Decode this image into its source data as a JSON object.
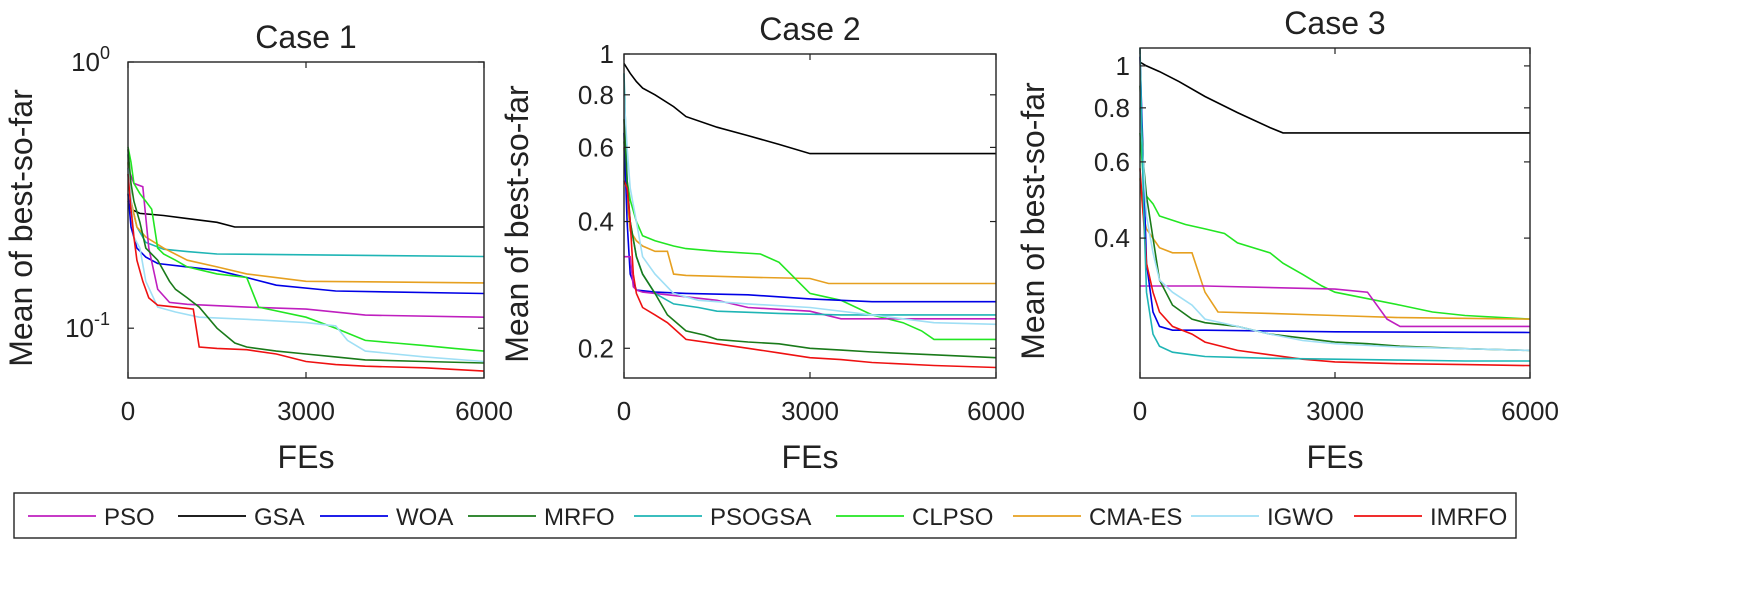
{
  "figure_legend": {
    "entries": [
      {
        "name": "PSO",
        "color": "#bf1fbf"
      },
      {
        "name": "GSA",
        "color": "#000000"
      },
      {
        "name": "WOA",
        "color": "#0000e6"
      },
      {
        "name": "MRFO",
        "color": "#1a7a1a"
      },
      {
        "name": "PSOGSA",
        "color": "#1fb5b5"
      },
      {
        "name": "CLPSO",
        "color": "#22e622"
      },
      {
        "name": "CMA-ES",
        "color": "#e6a020"
      },
      {
        "name": "IGWO",
        "color": "#9fdff5"
      },
      {
        "name": "IMRFO",
        "color": "#ee1111"
      }
    ]
  },
  "chart_data": [
    {
      "type": "line",
      "title": "Case 1",
      "xlabel": "FEs",
      "ylabel": "Mean of best-so-far",
      "yscale": "log",
      "xlim": [
        0,
        6000
      ],
      "ylim": [
        0.065,
        1.0
      ],
      "xticks": [
        {
          "value": 0,
          "label": "0"
        },
        {
          "value": 3000,
          "label": "3000"
        },
        {
          "value": 6000,
          "label": "6000"
        }
      ],
      "yticks": [
        {
          "value": 1.0,
          "label": "10",
          "exp": "0"
        },
        {
          "value": 0.1,
          "label": "10",
          "exp": "-1"
        }
      ],
      "series": [
        {
          "name": "GSA",
          "x": [
            0,
            50,
            200,
            600,
            1000,
            1500,
            1800,
            6000
          ],
          "y": [
            0.3,
            0.28,
            0.27,
            0.265,
            0.258,
            0.25,
            0.24,
            0.24
          ]
        },
        {
          "name": "PSOGSA",
          "x": [
            0,
            50,
            150,
            300,
            600,
            1000,
            1500,
            6000
          ],
          "y": [
            0.45,
            0.3,
            0.24,
            0.21,
            0.198,
            0.194,
            0.19,
            0.186
          ]
        },
        {
          "name": "CMA-ES",
          "x": [
            0,
            50,
            150,
            300,
            600,
            1000,
            1500,
            2000,
            3000,
            6000
          ],
          "y": [
            0.42,
            0.3,
            0.24,
            0.22,
            0.2,
            0.18,
            0.17,
            0.16,
            0.15,
            0.148
          ]
        },
        {
          "name": "WOA",
          "x": [
            0,
            50,
            150,
            300,
            500,
            1000,
            1500,
            2000,
            2500,
            3500,
            6000
          ],
          "y": [
            0.32,
            0.24,
            0.2,
            0.185,
            0.175,
            0.17,
            0.165,
            0.155,
            0.145,
            0.138,
            0.135
          ]
        },
        {
          "name": "PSO",
          "x": [
            0,
            100,
            250,
            350,
            500,
            700,
            1000,
            2000,
            3000,
            4000,
            6000
          ],
          "y": [
            0.4,
            0.35,
            0.34,
            0.2,
            0.14,
            0.125,
            0.123,
            0.12,
            0.118,
            0.112,
            0.11
          ]
        },
        {
          "name": "CLPSO",
          "x": [
            0,
            50,
            100,
            200,
            300,
            400,
            500,
            600,
            800,
            1000,
            1500,
            2000,
            2200,
            3000,
            3500,
            4000,
            4500,
            5000,
            5500,
            6000
          ],
          "y": [
            0.48,
            0.42,
            0.35,
            0.32,
            0.3,
            0.28,
            0.2,
            0.19,
            0.18,
            0.17,
            0.16,
            0.155,
            0.12,
            0.11,
            0.1,
            0.09,
            0.088,
            0.086,
            0.084,
            0.082
          ]
        },
        {
          "name": "IGWO",
          "x": [
            0,
            50,
            100,
            200,
            300,
            500,
            800,
            1200,
            2000,
            3000,
            3500,
            3700,
            4000,
            5000,
            6000
          ],
          "y": [
            0.4,
            0.3,
            0.22,
            0.2,
            0.15,
            0.12,
            0.115,
            0.11,
            0.108,
            0.105,
            0.102,
            0.09,
            0.082,
            0.078,
            0.075
          ]
        },
        {
          "name": "MRFO",
          "x": [
            0,
            50,
            100,
            200,
            300,
            500,
            700,
            800,
            1000,
            1200,
            1500,
            1800,
            2000,
            2500,
            3000,
            3500,
            4000,
            5000,
            6000
          ],
          "y": [
            0.47,
            0.35,
            0.3,
            0.25,
            0.2,
            0.18,
            0.15,
            0.14,
            0.13,
            0.12,
            0.1,
            0.088,
            0.085,
            0.082,
            0.08,
            0.078,
            0.076,
            0.075,
            0.074
          ]
        },
        {
          "name": "IMRFO",
          "x": [
            0,
            50,
            100,
            150,
            250,
            350,
            500,
            800,
            1100,
            1200,
            1500,
            2000,
            2500,
            3000,
            3500,
            4000,
            5000,
            6000
          ],
          "y": [
            0.38,
            0.28,
            0.22,
            0.18,
            0.15,
            0.13,
            0.122,
            0.12,
            0.118,
            0.085,
            0.084,
            0.083,
            0.08,
            0.075,
            0.073,
            0.072,
            0.071,
            0.069
          ]
        }
      ]
    },
    {
      "type": "line",
      "title": "Case 2",
      "xlabel": "FEs",
      "ylabel": "Mean of best-so-far",
      "yscale": "log",
      "xlim": [
        0,
        6000
      ],
      "ylim": [
        0.17,
        1.0
      ],
      "xticks": [
        {
          "value": 0,
          "label": "0"
        },
        {
          "value": 3000,
          "label": "3000"
        },
        {
          "value": 6000,
          "label": "6000"
        }
      ],
      "yticks": [
        {
          "value": 1.0,
          "label": "1"
        },
        {
          "value": 0.8,
          "label": "0.8"
        },
        {
          "value": 0.6,
          "label": "0.6"
        },
        {
          "value": 0.4,
          "label": "0.4"
        },
        {
          "value": 0.2,
          "label": "0.2"
        }
      ],
      "series": [
        {
          "name": "GSA",
          "x": [
            0,
            100,
            200,
            300,
            500,
            800,
            1000,
            1500,
            2000,
            2500,
            3000,
            6000
          ],
          "y": [
            0.95,
            0.9,
            0.86,
            0.83,
            0.8,
            0.75,
            0.71,
            0.67,
            0.64,
            0.61,
            0.58,
            0.58
          ]
        },
        {
          "name": "CMA-ES",
          "x": [
            0,
            50,
            100,
            200,
            300,
            500,
            700,
            800,
            1000,
            2000,
            3000,
            3300,
            6000
          ],
          "y": [
            0.6,
            0.45,
            0.38,
            0.36,
            0.35,
            0.34,
            0.34,
            0.3,
            0.298,
            0.295,
            0.293,
            0.285,
            0.285
          ]
        },
        {
          "name": "CLPSO",
          "x": [
            0,
            50,
            100,
            200,
            300,
            500,
            800,
            1000,
            1500,
            2200,
            2500,
            3000,
            3500,
            4000,
            4500,
            4800,
            5000,
            6000
          ],
          "y": [
            0.62,
            0.5,
            0.45,
            0.4,
            0.37,
            0.36,
            0.35,
            0.345,
            0.34,
            0.335,
            0.32,
            0.27,
            0.26,
            0.24,
            0.23,
            0.22,
            0.21,
            0.21
          ]
        },
        {
          "name": "WOA",
          "x": [
            0,
            50,
            100,
            200,
            500,
            1000,
            2000,
            3000,
            3500,
            4000,
            6000
          ],
          "y": [
            0.65,
            0.4,
            0.3,
            0.275,
            0.272,
            0.27,
            0.268,
            0.262,
            0.26,
            0.258,
            0.258
          ]
        },
        {
          "name": "PSO",
          "x": [
            0,
            100,
            150,
            200,
            300,
            500,
            1000,
            1500,
            2000,
            3000,
            3500,
            6000
          ],
          "y": [
            0.33,
            0.33,
            0.28,
            0.275,
            0.272,
            0.27,
            0.265,
            0.26,
            0.25,
            0.245,
            0.235,
            0.235
          ]
        },
        {
          "name": "PSOGSA",
          "x": [
            0,
            50,
            100,
            200,
            300,
            500,
            800,
            1200,
            1500,
            2500,
            3500,
            6000
          ],
          "y": [
            0.9,
            0.5,
            0.4,
            0.33,
            0.3,
            0.27,
            0.255,
            0.25,
            0.245,
            0.242,
            0.24,
            0.24
          ]
        },
        {
          "name": "IGWO",
          "x": [
            0,
            50,
            100,
            200,
            300,
            500,
            800,
            1200,
            2000,
            3000,
            4000,
            4500,
            5000,
            6000
          ],
          "y": [
            0.8,
            0.6,
            0.48,
            0.4,
            0.33,
            0.3,
            0.27,
            0.26,
            0.255,
            0.25,
            0.24,
            0.235,
            0.23,
            0.228
          ]
        },
        {
          "name": "MRFO",
          "x": [
            0,
            50,
            100,
            200,
            300,
            500,
            700,
            1000,
            1300,
            1500,
            2000,
            2500,
            3000,
            3500,
            4000,
            5000,
            6000
          ],
          "y": [
            0.7,
            0.5,
            0.4,
            0.33,
            0.3,
            0.27,
            0.24,
            0.22,
            0.215,
            0.21,
            0.207,
            0.205,
            0.2,
            0.198,
            0.196,
            0.193,
            0.19
          ]
        },
        {
          "name": "IMRFO",
          "x": [
            0,
            50,
            100,
            150,
            200,
            300,
            500,
            700,
            1000,
            1500,
            2000,
            2500,
            3000,
            3500,
            4000,
            5000,
            6000
          ],
          "y": [
            0.5,
            0.48,
            0.4,
            0.3,
            0.27,
            0.25,
            0.24,
            0.23,
            0.21,
            0.205,
            0.2,
            0.195,
            0.19,
            0.188,
            0.185,
            0.182,
            0.18
          ]
        }
      ]
    },
    {
      "type": "line",
      "title": "Case 3",
      "xlabel": "FEs",
      "ylabel": "Mean of best-so-far",
      "yscale": "log",
      "xlim": [
        0,
        6000
      ],
      "ylim": [
        0.19,
        1.1
      ],
      "xticks": [
        {
          "value": 0,
          "label": "0"
        },
        {
          "value": 3000,
          "label": "3000"
        },
        {
          "value": 6000,
          "label": "6000"
        }
      ],
      "yticks": [
        {
          "value": 1.0,
          "label": "1"
        },
        {
          "value": 0.8,
          "label": "0.8"
        },
        {
          "value": 0.6,
          "label": "0.6"
        },
        {
          "value": 0.4,
          "label": "0.4"
        }
      ],
      "series": [
        {
          "name": "GSA",
          "x": [
            0,
            100,
            300,
            600,
            1000,
            1500,
            2000,
            2200,
            6000
          ],
          "y": [
            1.02,
            1.0,
            0.97,
            0.92,
            0.85,
            0.78,
            0.72,
            0.7,
            0.7
          ]
        },
        {
          "name": "CLPSO",
          "x": [
            0,
            50,
            100,
            200,
            300,
            500,
            700,
            1000,
            1300,
            1500,
            2000,
            2200,
            2500,
            2800,
            3000,
            4000,
            4500,
            5000,
            6000
          ],
          "y": [
            0.7,
            0.55,
            0.5,
            0.48,
            0.45,
            0.44,
            0.43,
            0.42,
            0.41,
            0.39,
            0.37,
            0.35,
            0.33,
            0.31,
            0.3,
            0.28,
            0.27,
            0.265,
            0.26
          ]
        },
        {
          "name": "CMA-ES",
          "x": [
            0,
            50,
            100,
            300,
            500,
            800,
            1000,
            1200,
            2000,
            3000,
            4000,
            6000
          ],
          "y": [
            0.55,
            0.45,
            0.42,
            0.38,
            0.37,
            0.37,
            0.3,
            0.27,
            0.268,
            0.265,
            0.262,
            0.26
          ]
        },
        {
          "name": "PSO",
          "x": [
            0,
            1000,
            3000,
            3500,
            3800,
            4000,
            6000
          ],
          "y": [
            0.31,
            0.31,
            0.305,
            0.3,
            0.26,
            0.25,
            0.25
          ]
        },
        {
          "name": "WOA",
          "x": [
            0,
            50,
            100,
            200,
            300,
            500,
            1000,
            3000,
            6000
          ],
          "y": [
            1.05,
            0.6,
            0.35,
            0.27,
            0.25,
            0.245,
            0.245,
            0.243,
            0.242
          ]
        },
        {
          "name": "MRFO",
          "x": [
            0,
            50,
            100,
            200,
            300,
            500,
            800,
            1000,
            1500,
            2000,
            2500,
            3000,
            3500,
            4000,
            5000,
            6000
          ],
          "y": [
            0.9,
            0.6,
            0.5,
            0.4,
            0.32,
            0.28,
            0.26,
            0.255,
            0.25,
            0.24,
            0.235,
            0.23,
            0.228,
            0.225,
            0.222,
            0.22
          ]
        },
        {
          "name": "IGWO",
          "x": [
            0,
            50,
            100,
            200,
            300,
            500,
            800,
            1000,
            1500,
            2000,
            2500,
            3000,
            4000,
            5000,
            6000
          ],
          "y": [
            0.8,
            0.6,
            0.45,
            0.37,
            0.32,
            0.3,
            0.28,
            0.26,
            0.25,
            0.24,
            0.232,
            0.228,
            0.224,
            0.222,
            0.22
          ]
        },
        {
          "name": "IMRFO",
          "x": [
            0,
            50,
            100,
            200,
            300,
            500,
            800,
            1000,
            1500,
            2000,
            2500,
            3000,
            4000,
            5000,
            6000
          ],
          "y": [
            0.58,
            0.45,
            0.35,
            0.3,
            0.27,
            0.25,
            0.24,
            0.23,
            0.22,
            0.215,
            0.21,
            0.207,
            0.205,
            0.204,
            0.203
          ]
        },
        {
          "name": "PSOGSA",
          "x": [
            0,
            50,
            100,
            200,
            300,
            500,
            800,
            1000,
            1500,
            2000,
            3000,
            4000,
            5000,
            6000
          ],
          "y": [
            1.1,
            0.5,
            0.3,
            0.24,
            0.225,
            0.218,
            0.215,
            0.213,
            0.212,
            0.211,
            0.21,
            0.209,
            0.208,
            0.208
          ]
        }
      ]
    }
  ]
}
